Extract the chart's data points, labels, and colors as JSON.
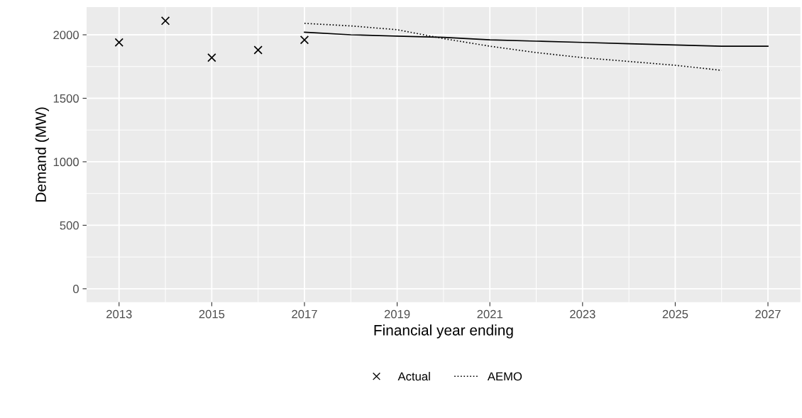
{
  "chart_data": {
    "type": "scatter",
    "xlabel": "Financial year ending",
    "ylabel": "Demand (MW)",
    "series": [
      {
        "name": "Actual",
        "color": "#000000",
        "marker": "cross",
        "x": [
          2013,
          2014,
          2015,
          2016,
          2017
        ],
        "values": [
          1940,
          2110,
          1820,
          1880,
          1960
        ]
      },
      {
        "type": "line",
        "color": "#000000",
        "line_style": "solid",
        "x": [
          2017,
          2018,
          2019,
          2020,
          2021,
          2022,
          2023,
          2024,
          2025,
          2026,
          2027
        ],
        "values": [
          2020,
          2000,
          1990,
          1980,
          1960,
          1950,
          1940,
          1930,
          1920,
          1910,
          1910
        ]
      },
      {
        "name": "AEMO",
        "type": "line",
        "color": "#000000",
        "line_style": "dotted",
        "x": [
          2017,
          2018,
          2019,
          2020,
          2021,
          2022,
          2023,
          2024,
          2025,
          2026
        ],
        "values": [
          2090,
          2070,
          2040,
          1970,
          1910,
          1860,
          1820,
          1790,
          1760,
          1720
        ]
      }
    ],
    "xlim": [
      2012.3,
      2027.7
    ],
    "xticks": [
      2013,
      2015,
      2017,
      2019,
      2021,
      2023,
      2025,
      2027
    ],
    "ylim": [
      -106,
      2218
    ],
    "yticks": [
      0,
      500,
      1000,
      1500,
      2000
    ],
    "grid": true,
    "legend": "bottom"
  }
}
